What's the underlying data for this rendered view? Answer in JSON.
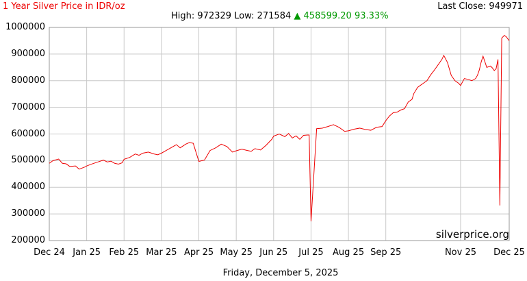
{
  "header": {
    "title": "1 Year Silver Price in IDR/oz",
    "last_close_label": "Last Close:",
    "last_close_value": "949971",
    "high_label": "High:",
    "high_value": "972329",
    "low_label": "Low:",
    "low_value": "271584",
    "change_arrow": "▲",
    "change_value": "458599.20",
    "change_percent": "93.33%"
  },
  "watermark": "silverprice.org",
  "footer_date": "Friday, December 5, 2025",
  "colors": {
    "line": "#ee0000",
    "title": "#ee0000",
    "change": "#009900",
    "grid": "#c8c8c8"
  },
  "chart_data": {
    "type": "line",
    "title": "1 Year Silver Price in IDR/oz",
    "xlabel": "",
    "ylabel": "",
    "ylim": [
      200000,
      1000000
    ],
    "yticks": [
      "1000000",
      "900000",
      "800000",
      "700000",
      "600000",
      "500000",
      "400000",
      "300000",
      "200000"
    ],
    "xticks": [
      "Dec 24",
      "Jan 25",
      "Feb 25",
      "Mar 25",
      "Apr 25",
      "May 25",
      "Jun 25",
      "Jul 25",
      "Aug 25",
      "Sep 25",
      "Nov 25",
      "Dec 25"
    ],
    "grid": true,
    "series": [
      {
        "x": [
          0,
          0.1,
          0.25,
          0.35,
          0.45,
          0.55,
          0.7,
          0.8,
          0.95,
          1.0,
          1.15,
          1.3,
          1.45,
          1.55,
          1.65,
          1.75,
          1.85,
          1.95,
          2.0,
          2.15,
          2.3,
          2.4,
          2.5,
          2.65,
          2.8,
          2.9,
          3.0,
          3.15,
          3.3,
          3.4,
          3.5,
          3.65,
          3.75,
          3.85,
          4.0,
          4.15,
          4.3,
          4.45,
          4.6,
          4.75,
          4.9,
          5.0,
          5.15,
          5.3,
          5.4,
          5.5,
          5.65,
          5.8,
          5.95,
          6.0,
          6.15,
          6.3,
          6.4,
          6.5,
          6.6,
          6.7,
          6.8,
          6.9,
          6.95,
          7.0,
          7.15,
          7.3,
          7.45,
          7.6,
          7.75,
          7.9,
          8.0,
          8.15,
          8.3,
          8.45,
          8.6,
          8.75,
          8.9,
          9.0,
          9.1,
          9.2,
          9.3,
          9.4,
          9.5,
          9.6,
          9.7,
          9.75,
          9.85,
          9.95,
          10.0,
          10.1,
          10.2,
          10.3,
          10.4,
          10.5,
          10.55,
          10.65,
          10.75,
          10.85,
          10.95,
          11.0,
          11.1,
          11.2,
          11.3,
          11.4,
          11.45,
          11.5,
          11.55,
          11.6,
          11.7,
          11.8,
          11.85,
          11.9,
          11.95,
          12.0
        ],
        "values": [
          490000,
          500000,
          506000,
          490000,
          488000,
          478000,
          480000,
          468000,
          476000,
          480000,
          488000,
          495000,
          502000,
          495000,
          498000,
          490000,
          487000,
          492000,
          505000,
          512000,
          525000,
          520000,
          528000,
          532000,
          525000,
          522000,
          528000,
          540000,
          552000,
          560000,
          548000,
          562000,
          568000,
          565000,
          497000,
          502000,
          538000,
          548000,
          562000,
          553000,
          532000,
          537000,
          543000,
          538000,
          535000,
          545000,
          540000,
          558000,
          580000,
          592000,
          600000,
          590000,
          602000,
          585000,
          593000,
          580000,
          595000,
          596000,
          596000,
          272000,
          620000,
          622000,
          628000,
          635000,
          625000,
          610000,
          612000,
          618000,
          622000,
          617000,
          614000,
          625000,
          628000,
          650000,
          668000,
          680000,
          682000,
          690000,
          695000,
          720000,
          730000,
          752000,
          775000,
          785000,
          790000,
          800000,
          822000,
          840000,
          860000,
          880000,
          895000,
          868000,
          820000,
          800000,
          790000,
          782000,
          808000,
          805000,
          800000,
          808000,
          820000,
          840000,
          870000,
          892000,
          850000,
          855000,
          848000,
          838000,
          845000,
          880000
        ]
      }
    ],
    "close_series": {
      "x": [
        12.0,
        12.05,
        12.1,
        12.17,
        12.22,
        12.3
      ],
      "values": [
        880000,
        332000,
        960000,
        970000,
        965000,
        950000
      ]
    }
  }
}
